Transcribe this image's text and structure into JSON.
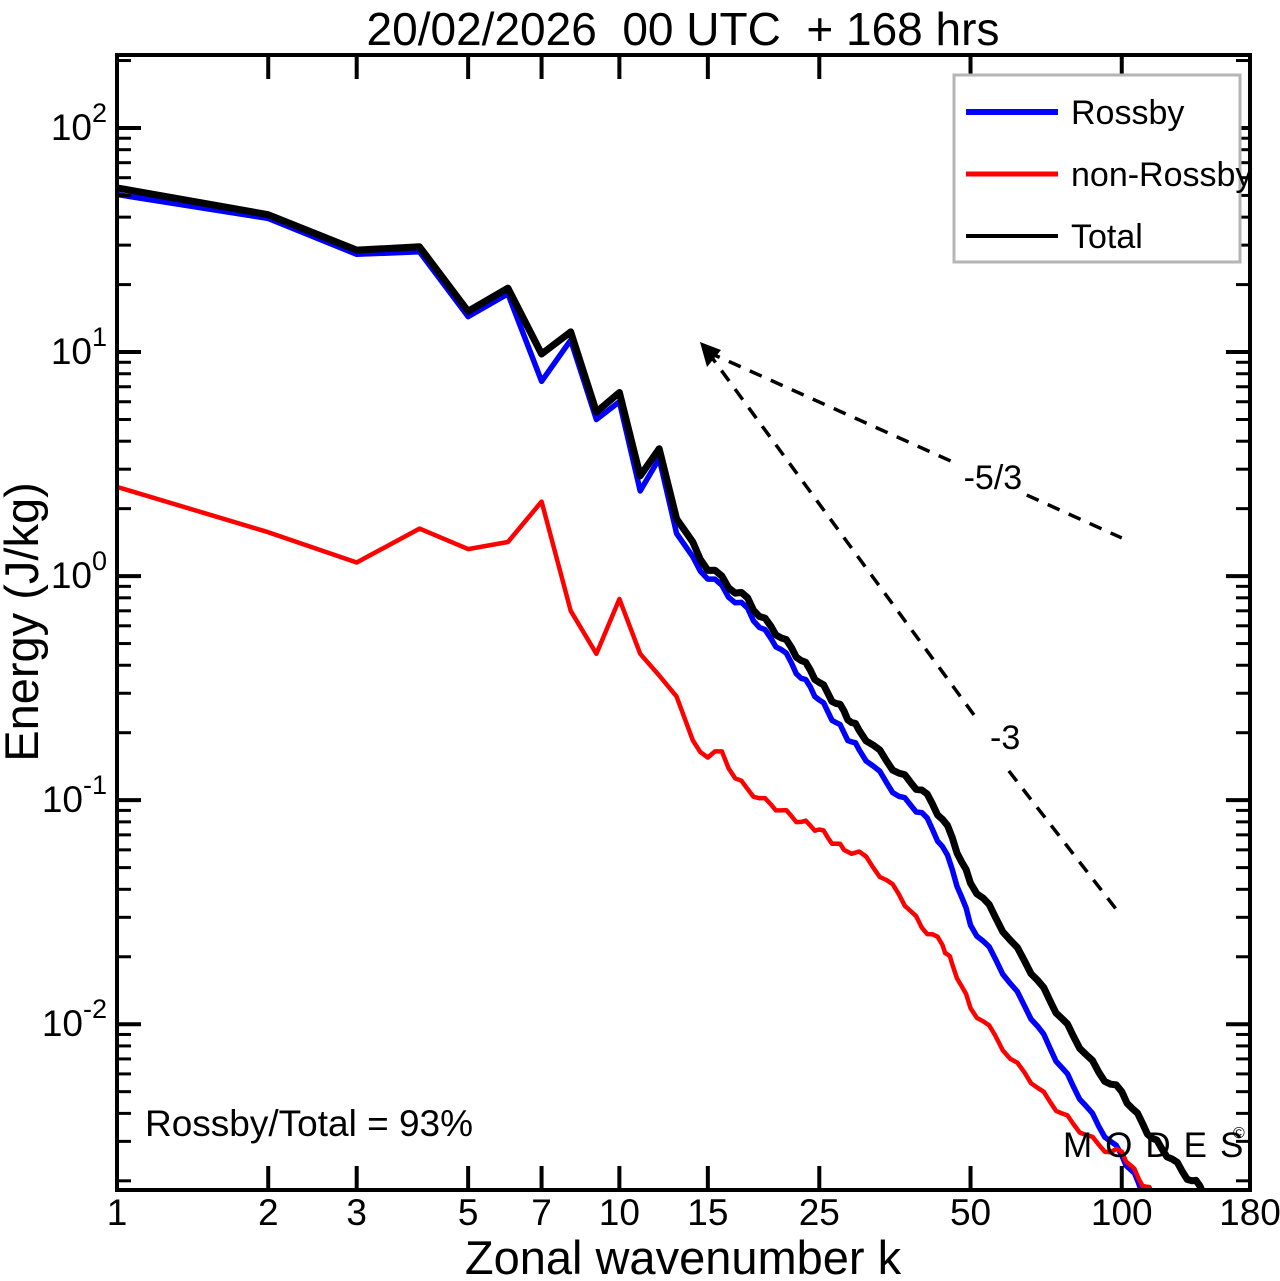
{
  "title": "20/02/2026  00 UTC  + 168 hrs",
  "axes": {
    "xlabel": "Zonal wavenumber k",
    "ylabel": "Energy (J/kg)"
  },
  "annotation": "Rossby/Total = 93%",
  "watermark": {
    "text": "MODES",
    "mark": "©",
    "color": "#9c9c9c"
  },
  "legend": {
    "items": [
      {
        "label": "Rossby",
        "color": "#0000ff"
      },
      {
        "label": "non-Rossby",
        "color": "#ff0000"
      },
      {
        "label": "Total",
        "color": "#000000"
      }
    ]
  },
  "chart_data": {
    "type": "line",
    "title": "20/02/2026  00 UTC  + 168 hrs",
    "xlabel": "Zonal wavenumber k",
    "ylabel": "Energy (J/kg)",
    "x_scale": "log",
    "y_scale": "log",
    "xlim": [
      1,
      180
    ],
    "ylim": [
      0.00182,
      211.7
    ],
    "x_ticks": [
      1,
      2,
      3,
      5,
      7,
      10,
      15,
      25,
      50,
      100,
      180
    ],
    "y_tick_exponents": [
      2,
      1,
      0,
      -1,
      -2
    ],
    "grid": false,
    "legend_position": "upper right",
    "series": [
      {
        "name": "Rossby",
        "color": "#0000ff",
        "points": [
          [
            1,
            50.5
          ],
          [
            2,
            39.5
          ],
          [
            3,
            27.3
          ],
          [
            4,
            28.0
          ],
          [
            5,
            14.4
          ],
          [
            6,
            18.2
          ],
          [
            7,
            7.4
          ],
          [
            8,
            11.3
          ],
          [
            9,
            5.0
          ],
          [
            10,
            6.0
          ],
          [
            11,
            2.4
          ],
          [
            12,
            3.35
          ],
          [
            13,
            1.55
          ],
          [
            14,
            1.22
          ],
          [
            15,
            0.97
          ],
          [
            16,
            0.91
          ],
          [
            17,
            0.76
          ],
          [
            18,
            0.72
          ],
          [
            19,
            0.59
          ],
          [
            20,
            0.53
          ],
          [
            21,
            0.47
          ],
          [
            22,
            0.41
          ],
          [
            23,
            0.35
          ],
          [
            24,
            0.32
          ],
          [
            25,
            0.28
          ],
          [
            26,
            0.248
          ],
          [
            27,
            0.222
          ],
          [
            28,
            0.2
          ],
          [
            29,
            0.182
          ],
          [
            30,
            0.168
          ],
          [
            32,
            0.142
          ],
          [
            34,
            0.12
          ],
          [
            36,
            0.104
          ],
          [
            38,
            0.095
          ],
          [
            40,
            0.088
          ],
          [
            42,
            0.074
          ],
          [
            44,
            0.062
          ],
          [
            46,
            0.049
          ],
          [
            48,
            0.037
          ],
          [
            50,
            0.0277
          ],
          [
            53,
            0.0235
          ],
          [
            56,
            0.0196
          ],
          [
            60,
            0.0152
          ],
          [
            64,
            0.0121
          ],
          [
            68,
            0.0098
          ],
          [
            72,
            0.0078
          ],
          [
            76,
            0.0064
          ],
          [
            80,
            0.0053
          ],
          [
            85,
            0.0043
          ],
          [
            90,
            0.0035
          ],
          [
            95,
            0.003
          ],
          [
            100,
            0.0026
          ],
          [
            104,
            0.00225
          ],
          [
            108,
            0.00196
          ],
          [
            111,
            0.00175
          ]
        ]
      },
      {
        "name": "non-Rossby",
        "color": "#ff0000",
        "points": [
          [
            1,
            2.5
          ],
          [
            2,
            1.57
          ],
          [
            3,
            1.15
          ],
          [
            4,
            1.63
          ],
          [
            5,
            1.32
          ],
          [
            6,
            1.42
          ],
          [
            7,
            2.15
          ],
          [
            8,
            0.7
          ],
          [
            9,
            0.45
          ],
          [
            10,
            0.79
          ],
          [
            11,
            0.45
          ],
          [
            12,
            0.36
          ],
          [
            13,
            0.29
          ],
          [
            14,
            0.185
          ],
          [
            15,
            0.155
          ],
          [
            16,
            0.165
          ],
          [
            17,
            0.125
          ],
          [
            18,
            0.112
          ],
          [
            19,
            0.102
          ],
          [
            20,
            0.096
          ],
          [
            21,
            0.09
          ],
          [
            22,
            0.085
          ],
          [
            23,
            0.08
          ],
          [
            24,
            0.077
          ],
          [
            25,
            0.074
          ],
          [
            26,
            0.068
          ],
          [
            27,
            0.064
          ],
          [
            28,
            0.06
          ],
          [
            30,
            0.059
          ],
          [
            32,
            0.05
          ],
          [
            34,
            0.044
          ],
          [
            36,
            0.038
          ],
          [
            38,
            0.032
          ],
          [
            40,
            0.027
          ],
          [
            42,
            0.0252
          ],
          [
            44,
            0.0225
          ],
          [
            45,
            0.0205
          ],
          [
            46,
            0.0185
          ],
          [
            48,
            0.0148
          ],
          [
            50,
            0.0118
          ],
          [
            53,
            0.0103
          ],
          [
            56,
            0.0089
          ],
          [
            60,
            0.007
          ],
          [
            64,
            0.0061
          ],
          [
            68,
            0.0052
          ],
          [
            72,
            0.0045
          ],
          [
            76,
            0.004
          ],
          [
            80,
            0.0036
          ],
          [
            85,
            0.0032
          ],
          [
            90,
            0.0029
          ],
          [
            95,
            0.00268
          ],
          [
            100,
            0.0027
          ],
          [
            104,
            0.00235
          ],
          [
            108,
            0.00205
          ],
          [
            112,
            0.00188
          ],
          [
            115,
            0.00176
          ]
        ]
      },
      {
        "name": "Total",
        "color": "#000000",
        "points": [
          [
            1,
            54
          ],
          [
            2,
            41
          ],
          [
            3,
            28.5
          ],
          [
            4,
            29.5
          ],
          [
            5,
            15.2
          ],
          [
            6,
            19.3
          ],
          [
            7,
            9.8
          ],
          [
            8,
            12.3
          ],
          [
            9,
            5.4
          ],
          [
            10,
            6.6
          ],
          [
            11,
            2.8
          ],
          [
            12,
            3.7
          ],
          [
            13,
            1.8
          ],
          [
            14,
            1.42
          ],
          [
            15,
            1.06
          ],
          [
            16,
            1.0
          ],
          [
            17,
            0.84
          ],
          [
            18,
            0.8
          ],
          [
            19,
            0.66
          ],
          [
            20,
            0.6
          ],
          [
            21,
            0.53
          ],
          [
            22,
            0.48
          ],
          [
            23,
            0.42
          ],
          [
            24,
            0.38
          ],
          [
            25,
            0.335
          ],
          [
            26,
            0.3
          ],
          [
            27,
            0.27
          ],
          [
            28,
            0.25
          ],
          [
            29,
            0.222
          ],
          [
            30,
            0.205
          ],
          [
            32,
            0.176
          ],
          [
            34,
            0.15
          ],
          [
            36,
            0.132
          ],
          [
            38,
            0.12
          ],
          [
            40,
            0.111
          ],
          [
            42,
            0.096
          ],
          [
            44,
            0.082
          ],
          [
            46,
            0.068
          ],
          [
            48,
            0.053
          ],
          [
            50,
            0.0426
          ],
          [
            53,
            0.0365
          ],
          [
            56,
            0.0301
          ],
          [
            60,
            0.0237
          ],
          [
            64,
            0.0192
          ],
          [
            68,
            0.0157
          ],
          [
            72,
            0.0127
          ],
          [
            76,
            0.0106
          ],
          [
            80,
            0.0089
          ],
          [
            85,
            0.0073
          ],
          [
            90,
            0.0061
          ],
          [
            95,
            0.0054
          ],
          [
            100,
            0.005
          ],
          [
            105,
            0.0042
          ],
          [
            110,
            0.0036
          ],
          [
            115,
            0.0031
          ],
          [
            120,
            0.0028
          ],
          [
            126,
            0.0025
          ],
          [
            132,
            0.0022
          ],
          [
            138,
            0.002
          ],
          [
            143,
            0.0019
          ],
          [
            147,
            0.00176
          ]
        ]
      }
    ],
    "reference_lines": [
      {
        "label": "-5/3",
        "segments": [
          [
            [
              15,
              10
            ],
            [
              47,
              3.17
            ]
          ],
          [
            [
              64.7,
              2.3
            ],
            [
              100,
              1.48
            ]
          ]
        ],
        "label_at": [
          55.4,
          2.77
        ]
      },
      {
        "label": "-3",
        "segments": [
          [
            [
              15,
              10
            ],
            [
              50.8,
              0.24
            ]
          ],
          [
            [
              59.6,
              0.135
            ],
            [
              97.8,
              0.0323
            ]
          ]
        ],
        "label_at": [
          58.6,
          0.191
        ]
      }
    ],
    "annotations": [
      {
        "text": "Rossby/Total = 93%",
        "position": "lower left"
      }
    ]
  }
}
